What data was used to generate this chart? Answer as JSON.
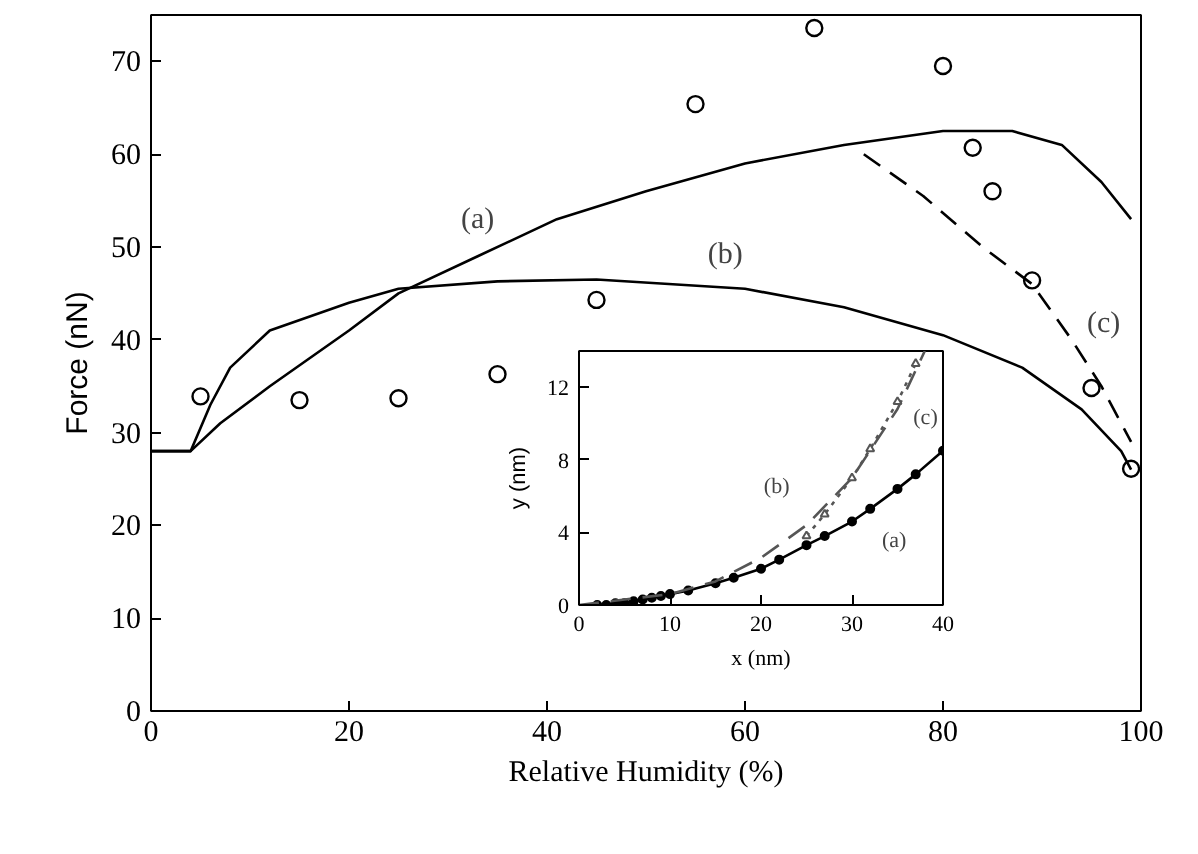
{
  "chart_data": [
    {
      "type": "line",
      "xlabel": "Relative Humidity (%)",
      "ylabel": "Force (nN)",
      "xlim": [
        0,
        100
      ],
      "ylim": [
        0,
        75
      ],
      "xticks": [
        0,
        20,
        40,
        60,
        80,
        100
      ],
      "yticks": [
        0,
        10,
        20,
        30,
        40,
        50,
        60,
        70
      ],
      "series": [
        {
          "type": "scatter",
          "marker": "circle",
          "color": "#000000",
          "x": [
            5,
            15,
            25,
            35,
            45,
            55,
            67,
            80,
            83,
            85,
            89,
            95,
            99
          ],
          "values": [
            33.9,
            33.5,
            33.7,
            36.3,
            44.3,
            65.4,
            73.6,
            69.5,
            60.7,
            56,
            46.4,
            34.8,
            26.1
          ]
        },
        {
          "type": "line",
          "line_style": "solid",
          "color": "#000000",
          "x": [
            0,
            4,
            7,
            12,
            20,
            25,
            33,
            41,
            50,
            60,
            70,
            80,
            87,
            92,
            96,
            99
          ],
          "values": [
            28,
            28,
            31,
            35,
            41,
            45,
            49,
            53,
            56,
            59,
            61,
            62.5,
            62.5,
            61,
            57,
            53
          ]
        },
        {
          "type": "line",
          "line_style": "solid",
          "color": "#000000",
          "x": [
            0,
            4,
            6,
            8,
            12,
            20,
            25,
            35,
            45,
            60,
            70,
            80,
            88,
            94,
            98,
            99
          ],
          "values": [
            28,
            28,
            33,
            37,
            41,
            44,
            45.5,
            46.3,
            46.5,
            45.5,
            43.5,
            40.5,
            37,
            32.5,
            28,
            26
          ]
        },
        {
          "type": "line",
          "line_style": "dashed",
          "color": "#000000",
          "x": [
            72,
            78,
            84,
            89,
            93,
            96,
            99
          ],
          "values": [
            60,
            55.5,
            50,
            46,
            40,
            35,
            29
          ]
        }
      ],
      "annotations": [
        {
          "text": "(a)",
          "x": 33,
          "y": 49
        },
        {
          "text": "(b)",
          "x": 58,
          "y": 45.7
        },
        {
          "text": "(c)",
          "x": 93,
          "y": 40
        }
      ]
    },
    {
      "type": "line",
      "xlabel": "x (nm)",
      "ylabel": "y (nm)",
      "xlim": [
        0,
        40
      ],
      "ylim": [
        0,
        14
      ],
      "xticks": [
        0,
        10,
        20,
        30,
        40
      ],
      "yticks": [
        0,
        4,
        8,
        12
      ],
      "series": [
        {
          "type": "line",
          "line_style": "solid",
          "marker": "circle",
          "color": "#000000",
          "x": [
            2,
            3,
            4,
            5,
            6,
            7,
            8,
            9,
            10,
            12,
            15,
            17,
            20,
            22,
            25,
            27,
            30,
            32,
            35,
            37,
            40
          ],
          "values": [
            0,
            0,
            0.1,
            0.1,
            0.2,
            0.3,
            0.4,
            0.5,
            0.6,
            0.8,
            1.2,
            1.5,
            2.0,
            2.5,
            3.3,
            3.8,
            4.6,
            5.3,
            6.4,
            7.2,
            8.5
          ]
        },
        {
          "type": "line",
          "line_style": "dashed",
          "color": "#555555",
          "x": [
            0,
            10,
            15,
            20,
            25,
            30,
            35,
            38
          ],
          "values": [
            0,
            0.6,
            1.3,
            2.6,
            4.4,
            7,
            10.8,
            14
          ]
        },
        {
          "type": "line",
          "line_style": "dotted",
          "marker": "triangle",
          "color": "#555555",
          "x": [
            25,
            27,
            30,
            32,
            35,
            37
          ],
          "values": [
            3.8,
            5,
            7,
            8.6,
            11.2,
            13.3
          ]
        }
      ],
      "annotations": [
        {
          "text": "(a)",
          "x": 32,
          "y": 5.3
        },
        {
          "text": "(b)",
          "x": 27,
          "y": 5.4
        },
        {
          "text": "(c)",
          "x": 35,
          "y": 11.2
        }
      ]
    }
  ]
}
